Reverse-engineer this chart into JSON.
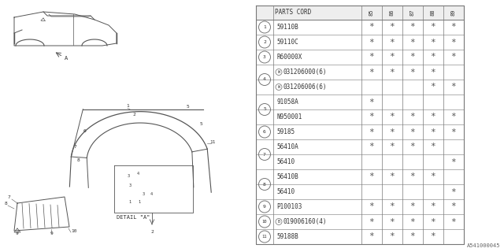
{
  "diagram_id": "A541000045",
  "rows": [
    {
      "ref": "1",
      "part": "59110B",
      "85": true,
      "86": true,
      "87": true,
      "88": true,
      "89": true,
      "part_prefix": "",
      "single_ref": true
    },
    {
      "ref": "2",
      "part": "59110C",
      "85": true,
      "86": true,
      "87": true,
      "88": true,
      "89": true,
      "part_prefix": "",
      "single_ref": true
    },
    {
      "ref": "3",
      "part": "R60000X",
      "85": true,
      "86": true,
      "87": true,
      "88": true,
      "89": true,
      "part_prefix": "",
      "single_ref": true
    },
    {
      "ref": "4",
      "part": "031206000(6)",
      "85": true,
      "86": true,
      "87": true,
      "88": true,
      "89": false,
      "part_prefix": "W",
      "single_ref": false
    },
    {
      "ref": "4",
      "part": "031206006(6)",
      "85": false,
      "86": false,
      "87": false,
      "88": true,
      "89": true,
      "part_prefix": "W",
      "single_ref": false
    },
    {
      "ref": "5",
      "part": "91058A",
      "85": true,
      "86": false,
      "87": false,
      "88": false,
      "89": false,
      "part_prefix": "",
      "single_ref": false
    },
    {
      "ref": "5",
      "part": "N950001",
      "85": true,
      "86": true,
      "87": true,
      "88": true,
      "89": true,
      "part_prefix": "",
      "single_ref": false
    },
    {
      "ref": "6",
      "part": "59185",
      "85": true,
      "86": true,
      "87": true,
      "88": true,
      "89": true,
      "part_prefix": "",
      "single_ref": true
    },
    {
      "ref": "7",
      "part": "56410A",
      "85": true,
      "86": true,
      "87": true,
      "88": true,
      "89": false,
      "part_prefix": "",
      "single_ref": false
    },
    {
      "ref": "7",
      "part": "56410",
      "85": false,
      "86": false,
      "87": false,
      "88": false,
      "89": true,
      "part_prefix": "",
      "single_ref": false
    },
    {
      "ref": "8",
      "part": "56410B",
      "85": true,
      "86": true,
      "87": true,
      "88": true,
      "89": false,
      "part_prefix": "",
      "single_ref": false
    },
    {
      "ref": "8",
      "part": "56410",
      "85": false,
      "86": false,
      "87": false,
      "88": false,
      "89": true,
      "part_prefix": "",
      "single_ref": false
    },
    {
      "ref": "9",
      "part": "P100103",
      "85": true,
      "86": true,
      "87": true,
      "88": true,
      "89": true,
      "part_prefix": "",
      "single_ref": true
    },
    {
      "ref": "10",
      "part": "019006160(4)",
      "85": true,
      "86": true,
      "87": true,
      "88": true,
      "89": true,
      "part_prefix": "B",
      "single_ref": true
    },
    {
      "ref": "11",
      "part": "59188B",
      "85": true,
      "86": true,
      "87": true,
      "88": true,
      "89": false,
      "part_prefix": "",
      "single_ref": true
    }
  ],
  "ref_groups": {
    "1": [
      0
    ],
    "2": [
      1
    ],
    "3": [
      2
    ],
    "4": [
      3,
      4
    ],
    "5": [
      5,
      6
    ],
    "6": [
      7
    ],
    "7": [
      8,
      9
    ],
    "8": [
      10,
      11
    ],
    "9": [
      12
    ],
    "10": [
      13
    ],
    "11": [
      14
    ]
  },
  "year_cols": [
    "85",
    "86",
    "87",
    "88",
    "89"
  ],
  "bg_color": "#ffffff",
  "line_color": "#777777",
  "text_color": "#333333"
}
